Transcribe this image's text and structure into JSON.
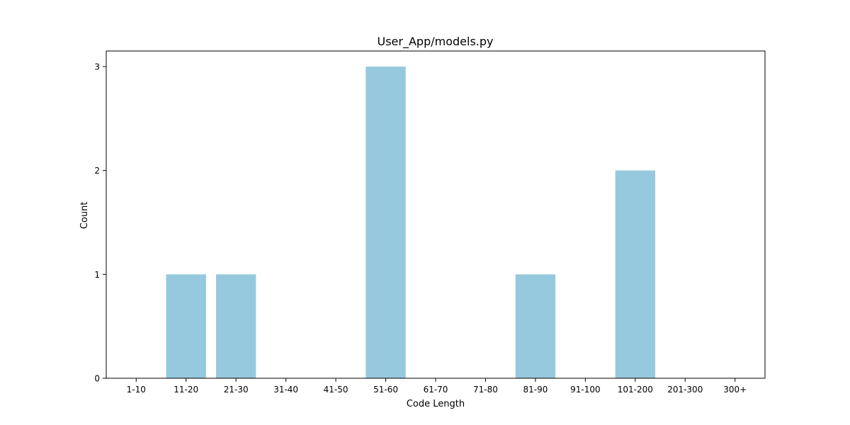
{
  "chart_data": {
    "type": "bar",
    "title": "User_App/models.py",
    "xlabel": "Code Length",
    "ylabel": "Count",
    "categories": [
      "1-10",
      "11-20",
      "21-30",
      "31-40",
      "41-50",
      "51-60",
      "61-70",
      "71-80",
      "81-90",
      "91-100",
      "101-200",
      "201-300",
      "300+"
    ],
    "values": [
      0,
      1,
      1,
      0,
      0,
      3,
      0,
      0,
      1,
      0,
      2,
      0,
      0
    ],
    "ylim": [
      0,
      3.15
    ],
    "yticks": [
      "0",
      "1",
      "2",
      "3"
    ],
    "grid": false,
    "bar_color": "#96c9dd"
  }
}
